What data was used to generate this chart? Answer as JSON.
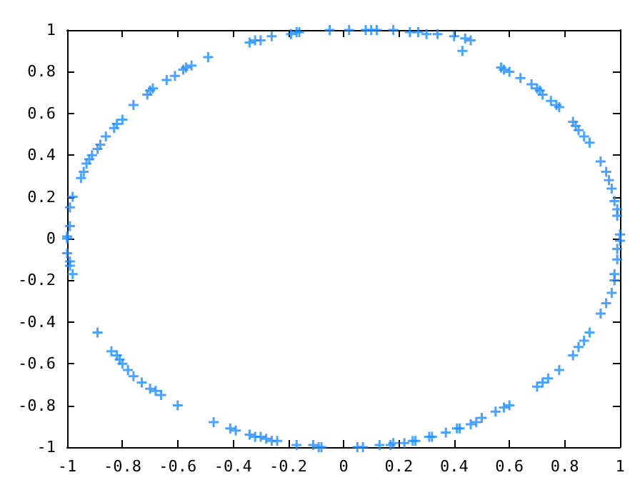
{
  "chart_data": {
    "type": "scatter",
    "marker": "cross",
    "grid": false,
    "xlim": [
      -1,
      1
    ],
    "ylim": [
      -1,
      1
    ],
    "xticks": [
      -1,
      -0.8,
      -0.6,
      -0.4,
      -0.2,
      0,
      0.2,
      0.4,
      0.6,
      0.8,
      1
    ],
    "yticks": [
      -1,
      -0.8,
      -0.6,
      -0.4,
      -0.2,
      0,
      0.2,
      0.4,
      0.6,
      0.8,
      1
    ],
    "series": [
      {
        "color": "#1e8cff",
        "x": [
          -1,
          -1,
          -0.99,
          -0.99,
          -0.98,
          -0.95,
          -0.94,
          -0.93,
          -0.92,
          -0.91,
          -0.89,
          -0.88,
          -0.86,
          -0.83,
          -0.82,
          -0.8,
          -0.76,
          -0.71,
          -0.7,
          -0.69,
          -0.64,
          -0.61,
          -0.58,
          -0.57,
          -0.55,
          -0.49,
          -0.34,
          -0.32,
          -0.3,
          -0.26,
          -0.19,
          -0.17,
          -0.16,
          -0.05,
          0.02,
          0.08,
          0.1,
          0.12,
          0.18,
          0.24,
          0.27,
          0.3,
          0.34,
          0.4,
          0.44,
          0.46,
          0.43,
          0.57,
          0.58,
          0.6,
          0.64,
          0.68,
          0.7,
          0.71,
          0.72,
          0.75,
          0.77,
          0.78,
          0.83,
          0.84,
          0.85,
          0.87,
          0.89,
          0.93,
          0.95,
          0.96,
          0.97,
          0.98,
          0.99,
          0.99,
          1,
          1,
          0.99,
          0.99,
          0.98,
          0.98,
          0.97,
          0.95,
          0.93,
          0.89,
          0.87,
          0.85,
          0.83,
          0.78,
          0.74,
          0.72,
          0.7,
          0.6,
          0.58,
          0.55,
          0.5,
          0.48,
          0.46,
          0.42,
          0.41,
          0.37,
          0.32,
          0.31,
          0.26,
          0.25,
          0.22,
          0.18,
          0.17,
          0.13,
          0.07,
          0.05,
          -0.08,
          -0.09,
          -0.11,
          -0.17,
          -0.24,
          -0.26,
          -0.28,
          -0.3,
          -0.32,
          -0.34,
          -0.39,
          -0.41,
          -0.47,
          -0.6,
          -0.66,
          -0.68,
          -0.7,
          -0.73,
          -0.76,
          -0.78,
          -0.8,
          -0.81,
          -0.82,
          -0.84,
          -0.89,
          -0.98,
          -0.99,
          -0.99,
          -1
        ],
        "values": [
          0,
          0.01,
          0.06,
          0.15,
          0.2,
          0.29,
          0.32,
          0.36,
          0.38,
          0.4,
          0.43,
          0.45,
          0.49,
          0.53,
          0.55,
          0.57,
          0.64,
          0.69,
          0.71,
          0.72,
          0.76,
          0.78,
          0.81,
          0.82,
          0.83,
          0.87,
          0.94,
          0.95,
          0.95,
          0.97,
          0.98,
          0.99,
          0.99,
          1,
          1,
          1,
          1,
          1,
          1,
          0.99,
          0.99,
          0.98,
          0.98,
          0.97,
          0.96,
          0.95,
          0.9,
          0.82,
          0.81,
          0.8,
          0.77,
          0.74,
          0.72,
          0.71,
          0.69,
          0.66,
          0.64,
          0.63,
          0.56,
          0.54,
          0.52,
          0.49,
          0.46,
          0.37,
          0.32,
          0.28,
          0.24,
          0.18,
          0.14,
          0.11,
          0.02,
          -0.01,
          -0.05,
          -0.1,
          -0.17,
          -0.2,
          -0.26,
          -0.31,
          -0.36,
          -0.45,
          -0.49,
          -0.52,
          -0.56,
          -0.63,
          -0.67,
          -0.69,
          -0.71,
          -0.8,
          -0.81,
          -0.83,
          -0.86,
          -0.88,
          -0.89,
          -0.91,
          -0.91,
          -0.93,
          -0.95,
          -0.95,
          -0.97,
          -0.97,
          -0.98,
          -0.98,
          -0.99,
          -0.99,
          -1,
          -1,
          -1,
          -1,
          -0.99,
          -0.99,
          -0.97,
          -0.97,
          -0.96,
          -0.95,
          -0.95,
          -0.94,
          -0.92,
          -0.91,
          -0.88,
          -0.8,
          -0.75,
          -0.73,
          -0.72,
          -0.69,
          -0.66,
          -0.63,
          -0.6,
          -0.58,
          -0.56,
          -0.54,
          -0.45,
          -0.17,
          -0.13,
          -0.11,
          -0.07
        ]
      }
    ]
  }
}
